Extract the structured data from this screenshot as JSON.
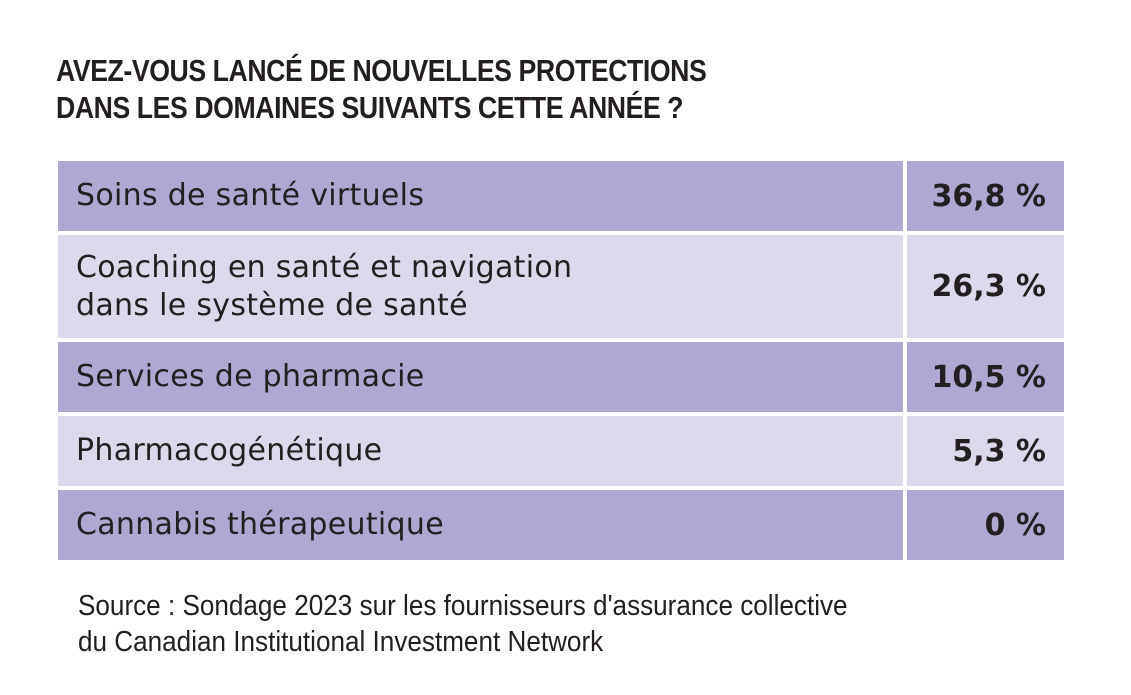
{
  "chart_data": {
    "type": "table",
    "title_lines": [
      "AVEZ-VOUS LANCÉ DE NOUVELLES PROTECTIONS",
      "DANS LES DOMAINES SUIVANTS CETTE ANNÉE ?"
    ],
    "rows": [
      {
        "label_lines": [
          "Soins de santé virtuels"
        ],
        "value": 36.8,
        "value_text": "36,8 %"
      },
      {
        "label_lines": [
          "Coaching en santé et navigation",
          "dans le système de santé"
        ],
        "value": 26.3,
        "value_text": "26,3 %"
      },
      {
        "label_lines": [
          "Services de pharmacie"
        ],
        "value": 10.5,
        "value_text": "10,5 %"
      },
      {
        "label_lines": [
          "Pharmacogénétique"
        ],
        "value": 5.3,
        "value_text": "5,3 %"
      },
      {
        "label_lines": [
          "Cannabis thérapeutique"
        ],
        "value": 0,
        "value_text": "0 %"
      }
    ],
    "source_lines": [
      "Source : Sondage 2023 sur les fournisseurs d'assurance collective",
      "du Canadian Institutional Investment Network"
    ]
  },
  "colors": {
    "row_dark": "#aea8d3",
    "row_light": "#dcd9ed",
    "text": "#231f20",
    "background": "#ffffff"
  }
}
